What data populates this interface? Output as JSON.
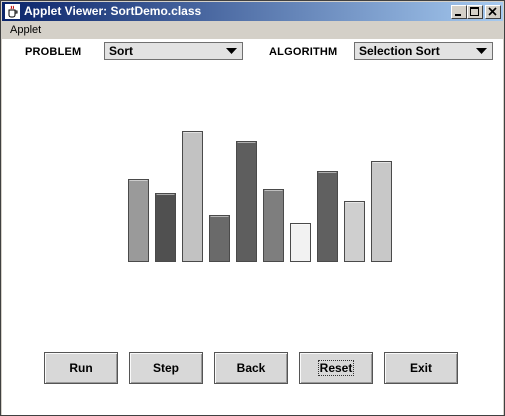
{
  "window": {
    "title": "Applet Viewer: SortDemo.class"
  },
  "menu": {
    "items": [
      "Applet"
    ]
  },
  "controls": {
    "problem_label": "PROBLEM",
    "problem_value": "Sort",
    "algorithm_label": "ALGORITHM",
    "algorithm_value": "Selection Sort"
  },
  "chart_data": {
    "type": "bar",
    "title": "",
    "xlabel": "",
    "ylabel": "",
    "ylim": [
      0,
      130
    ],
    "values": [
      82,
      68,
      130,
      46,
      120,
      72,
      38,
      90,
      60,
      100
    ],
    "colors": [
      "#9a9a9a",
      "#505050",
      "#c2c2c2",
      "#6a6a6a",
      "#5e5e5e",
      "#7e7e7e",
      "#f2f2f2",
      "#606060",
      "#cfcfcf",
      "#c8c8c8"
    ]
  },
  "buttons": {
    "run": "Run",
    "step": "Step",
    "back": "Back",
    "reset": "Reset",
    "exit": "Exit"
  }
}
